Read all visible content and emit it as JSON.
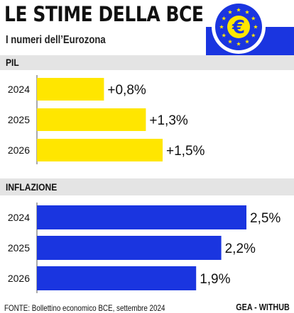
{
  "header": {
    "title": "LE STIME DELLA BCE",
    "subtitle": "I numeri dell’Eurozona",
    "logo_icon": "ecb-euro-logo-icon"
  },
  "footer": {
    "source": "FONTE: Bollettino economico BCE, settembre 2024",
    "brand": "GEA - WITHUB"
  },
  "colors": {
    "pil_bar": "#ffe600",
    "inflation_bar": "#1a35e0",
    "band": "#e4e4e4",
    "logo_blue": "#1a35e0",
    "logo_yellow": "#ffe600"
  },
  "chart_data": [
    {
      "type": "bar",
      "orientation": "horizontal",
      "title": "PIL",
      "categories": [
        "2024",
        "2025",
        "2026"
      ],
      "values": [
        0.8,
        1.3,
        1.5
      ],
      "labels": [
        "+0,8%",
        "+1,3%",
        "+1,5%"
      ],
      "unit": "%"
    },
    {
      "type": "bar",
      "orientation": "horizontal",
      "title": "INFLAZIONE",
      "categories": [
        "2024",
        "2025",
        "2026"
      ],
      "values": [
        2.5,
        2.2,
        1.9
      ],
      "labels": [
        "2,5%",
        "2,2%",
        "1,9%"
      ],
      "unit": "%"
    }
  ]
}
